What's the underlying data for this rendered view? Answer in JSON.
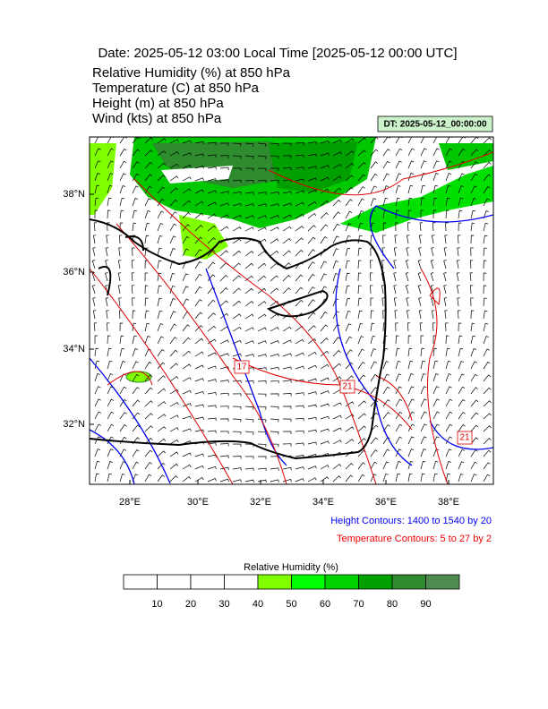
{
  "header": {
    "title": "Date: 2025-05-12  03:00 Local Time [2025-05-12  00:00 UTC]",
    "lines": [
      "Relative Humidity   (%)     at   850 hPa",
      "Temperature   (C)     at   850 hPa",
      "Height   (m)     at   850 hPa",
      "Wind   (kts)     at   850 hPa"
    ],
    "stamp": "DT: 2025-05-12_00:00:00"
  },
  "map": {
    "lon_labels": [
      "28°E",
      "30°E",
      "32°E",
      "34°E",
      "36°E",
      "38°E"
    ],
    "lat_labels": [
      "38°N",
      "36°N",
      "34°N",
      "32°N"
    ],
    "contour_labels": [
      "17",
      "21",
      "21"
    ],
    "height_note": "Height Contours: 1400 to 1540 by 20",
    "temp_note": "Temperature Contours: 5 to 27 by 2"
  },
  "colorbar": {
    "title": "Relative Humidity  (%)",
    "labels": [
      "10",
      "20",
      "30",
      "40",
      "50",
      "60",
      "70",
      "80",
      "90"
    ],
    "colors": [
      "#ffffff",
      "#ffffff",
      "#ffffff",
      "#ffffff",
      "#80ff00",
      "#00ff00",
      "#00d200",
      "#00a000",
      "#2e8b2e",
      "#4f8a4f"
    ]
  }
}
